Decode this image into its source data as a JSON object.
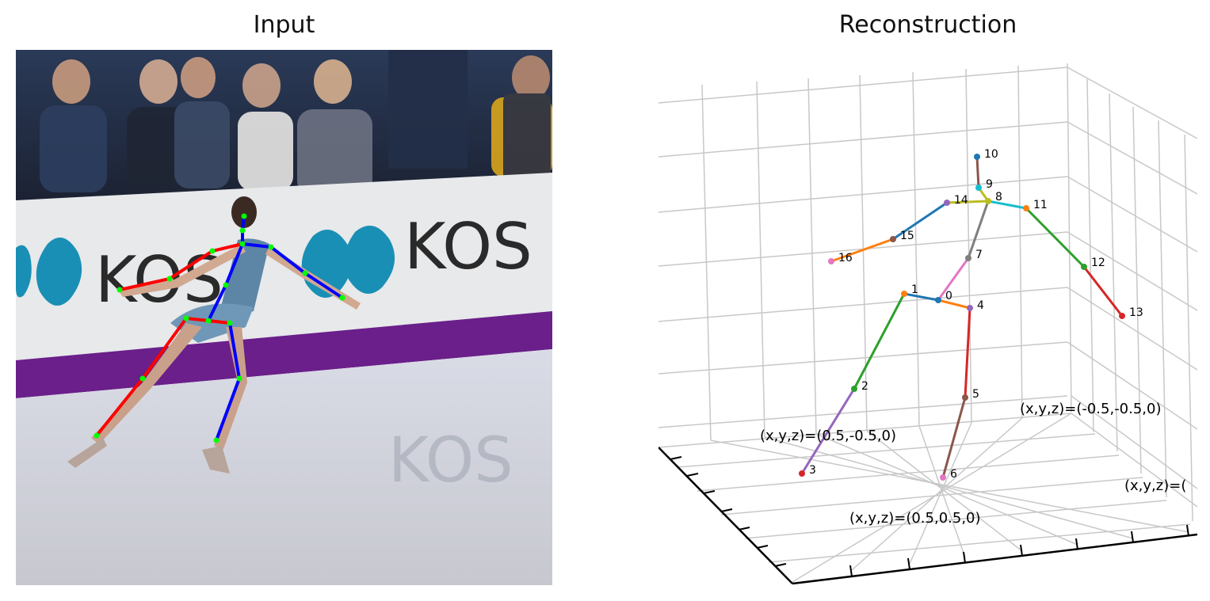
{
  "titles": {
    "input": "Input",
    "reconstruction": "Reconstruction"
  },
  "photo": {
    "banner_text": "KOS",
    "reflection_text": "KOS"
  },
  "colors": {
    "skeleton_right": "#ff0000",
    "skeleton_left": "#0000ff",
    "joint": "#00ff00",
    "banner_purple": "#6a1f8a",
    "logo_blue": "#1a8fb5"
  },
  "joint_labels": [
    "0",
    "1",
    "2",
    "3",
    "4",
    "5",
    "6",
    "7",
    "8",
    "9",
    "10",
    "11",
    "12",
    "13",
    "14",
    "15",
    "16"
  ],
  "annotations": [
    "(x,y,z)=(0.5,-0.5,0)",
    "(x,y,z)=(-0.5,-0.5,0)",
    "(x,y,z)=(0.5,0.5,0)",
    "(x,y,z)=("
  ]
}
